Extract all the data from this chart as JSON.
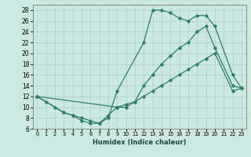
{
  "xlabel": "Humidex (Indice chaleur)",
  "bg_color": "#cce8e0",
  "line_color": "#2e7d6e",
  "grid_color": "#aacfc8",
  "xlim": [
    -0.5,
    23.5
  ],
  "ylim": [
    6,
    29
  ],
  "yticks": [
    6,
    8,
    10,
    12,
    14,
    16,
    18,
    20,
    22,
    24,
    26,
    28
  ],
  "xticks": [
    0,
    1,
    2,
    3,
    4,
    5,
    6,
    7,
    8,
    9,
    10,
    11,
    12,
    13,
    14,
    15,
    16,
    17,
    18,
    19,
    20,
    21,
    22,
    23
  ],
  "line1_x": [
    0,
    1,
    2,
    3,
    4,
    5,
    6,
    7,
    8,
    9,
    12,
    13,
    14,
    15,
    16,
    17,
    18,
    19,
    20,
    22,
    23
  ],
  "line1_y": [
    12,
    11,
    10,
    9,
    8.5,
    7.5,
    7,
    7,
    8,
    13,
    22,
    28,
    28,
    27.5,
    26.5,
    26,
    27,
    27,
    25,
    16,
    13.5
  ],
  "line2_x": [
    0,
    3,
    4,
    5,
    6,
    7,
    8,
    9,
    10,
    11,
    12,
    13,
    14,
    15,
    16,
    17,
    18,
    19,
    20,
    22,
    23
  ],
  "line2_y": [
    12,
    9,
    8.5,
    8,
    7.5,
    7,
    8.5,
    10,
    10,
    11,
    14,
    16,
    18,
    19.5,
    21,
    22,
    24,
    25,
    21,
    14,
    13.5
  ],
  "line3_x": [
    0,
    9,
    10,
    11,
    12,
    13,
    14,
    15,
    16,
    17,
    18,
    19,
    20,
    22,
    23
  ],
  "line3_y": [
    12,
    10,
    10.5,
    11,
    12,
    13,
    14,
    15,
    16,
    17,
    18,
    19,
    20,
    13,
    13.5
  ]
}
